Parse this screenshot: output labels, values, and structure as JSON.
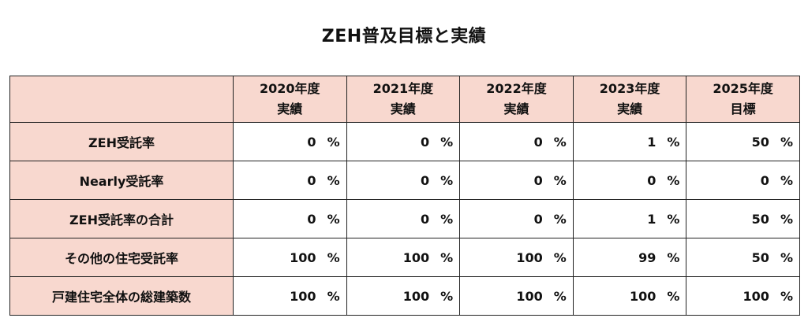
{
  "title": "ZEH普及目標と実績",
  "table": {
    "corner": "",
    "columns": [
      {
        "line1": "2020年度",
        "line2": "実績"
      },
      {
        "line1": "2021年度",
        "line2": "実績"
      },
      {
        "line1": "2022年度",
        "line2": "実績"
      },
      {
        "line1": "2023年度",
        "line2": "実績"
      },
      {
        "line1": "2025年度",
        "line2": "目標"
      }
    ],
    "unit": "%",
    "rows": [
      {
        "label": "ZEH受託率",
        "values": [
          "0",
          "0",
          "0",
          "1",
          "50"
        ]
      },
      {
        "label": "Nearly受託率",
        "values": [
          "0",
          "0",
          "0",
          "0",
          "0"
        ]
      },
      {
        "label": "ZEH受託率の合計",
        "values": [
          "0",
          "0",
          "0",
          "1",
          "50"
        ]
      },
      {
        "label": "その他の住宅受託率",
        "values": [
          "100",
          "100",
          "100",
          "99",
          "50"
        ]
      },
      {
        "label": "戸建住宅全体の総建築数",
        "values": [
          "100",
          "100",
          "100",
          "100",
          "100"
        ]
      }
    ]
  }
}
